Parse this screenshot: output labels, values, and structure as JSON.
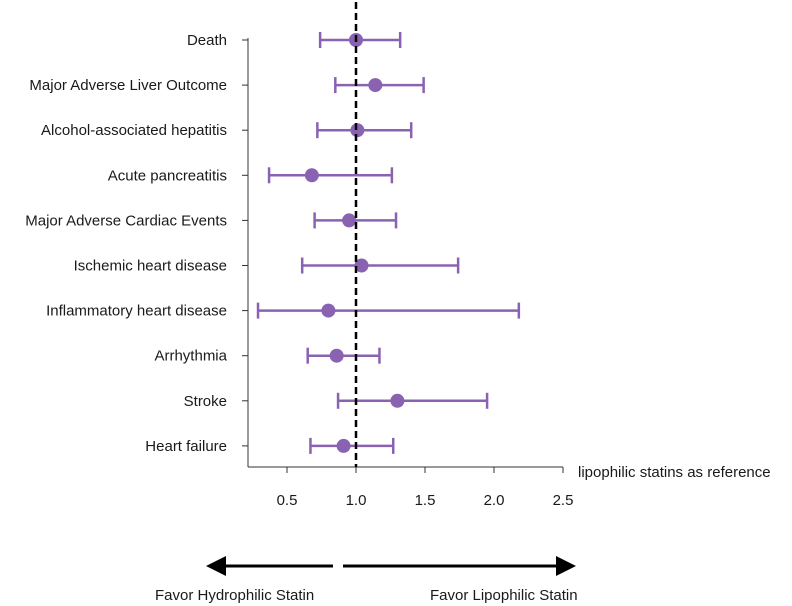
{
  "chart_data": {
    "type": "forest",
    "xlim": [
      0.25,
      2.5
    ],
    "x_ticks": [
      0.5,
      1.0,
      1.5,
      2.0,
      2.5
    ],
    "x_tick_labels": [
      "0.5",
      "1.0",
      "1.5",
      "2.0",
      "2.5"
    ],
    "reference_value": 1.0,
    "reference_note": "lipophilic statins as reference",
    "rows": [
      {
        "label": "Death",
        "estimate": 1.0,
        "lower": 0.74,
        "upper": 1.32
      },
      {
        "label": "Major Adverse Liver Outcome",
        "estimate": 1.14,
        "lower": 0.85,
        "upper": 1.49
      },
      {
        "label": "Alcohol-associated hepatitis",
        "estimate": 1.01,
        "lower": 0.72,
        "upper": 1.4
      },
      {
        "label": "Acute pancreatitis",
        "estimate": 0.68,
        "lower": 0.37,
        "upper": 1.26
      },
      {
        "label": "Major Adverse Cardiac Events",
        "estimate": 0.95,
        "lower": 0.7,
        "upper": 1.29
      },
      {
        "label": "Ischemic heart disease",
        "estimate": 1.04,
        "lower": 0.61,
        "upper": 1.74
      },
      {
        "label": "Inflammatory heart disease",
        "estimate": 0.8,
        "lower": 0.29,
        "upper": 2.18
      },
      {
        "label": "Arrhythmia",
        "estimate": 0.86,
        "lower": 0.65,
        "upper": 1.17
      },
      {
        "label": "Stroke",
        "estimate": 1.3,
        "lower": 0.87,
        "upper": 1.95
      },
      {
        "label": "Heart failure",
        "estimate": 0.91,
        "lower": 0.67,
        "upper": 1.27
      }
    ],
    "arrow_left_label": "Favor Hydrophilic Statin",
    "arrow_right_label": "Favor Lipophilic Statin",
    "colors": {
      "marker": "#8a62b2",
      "reference": "#000000"
    }
  }
}
